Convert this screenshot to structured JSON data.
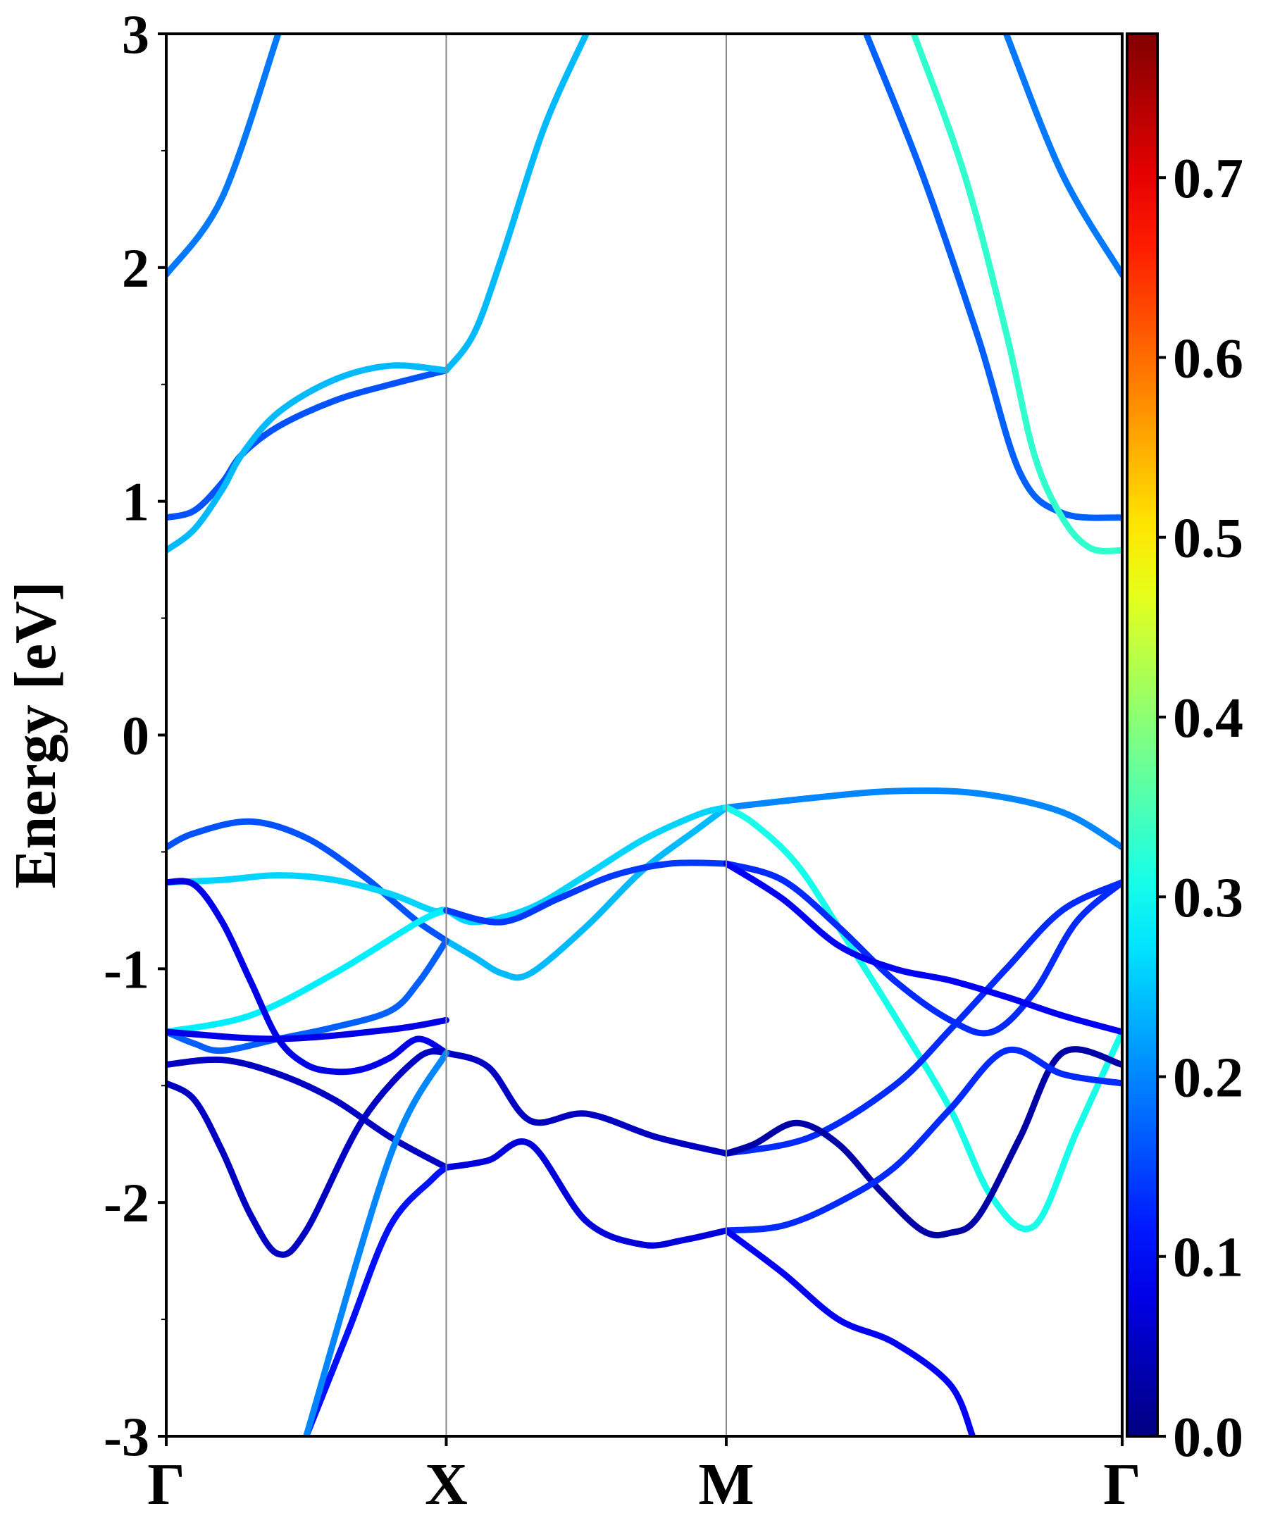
{
  "chart_data": {
    "type": "line",
    "xlabel": "",
    "ylabel": "Energy [eV]",
    "ylim": [
      -3,
      3
    ],
    "yticks": [
      -3,
      -2,
      -1,
      0,
      1,
      2,
      3
    ],
    "ytick_labels": [
      "-3",
      "-2",
      "-1",
      "0",
      "1",
      "2",
      "3"
    ],
    "xticks": [
      {
        "label": "Γ",
        "x": 0
      },
      {
        "label": "X",
        "x": 1
      },
      {
        "label": "M",
        "x": 2
      },
      {
        "label": "Γ",
        "x": 3.414
      }
    ],
    "xlim": [
      0,
      3.414
    ],
    "colorbar": {
      "colormap": "jet",
      "range": [
        0,
        0.78
      ],
      "ticks": [
        0.0,
        0.1,
        0.2,
        0.3,
        0.4,
        0.5,
        0.6,
        0.7
      ],
      "tick_labels": [
        "0.0",
        "0.1",
        "0.2",
        "0.3",
        "0.4",
        "0.5",
        "0.6",
        "0.7"
      ]
    },
    "series": [
      {
        "x": [
          0,
          0.2,
          0.4
        ],
        "y": [
          1.97,
          2.3,
          3.0
        ],
        "c": 0.19
      },
      {
        "x": [
          3.414,
          3.2,
          3.0
        ],
        "y": [
          1.97,
          2.4,
          3.0
        ],
        "c": 0.19
      },
      {
        "x": [
          0,
          0.1,
          0.2,
          0.27,
          0.4,
          0.6,
          0.8,
          1.0
        ],
        "y": [
          0.93,
          0.96,
          1.08,
          1.2,
          1.32,
          1.43,
          1.5,
          1.56
        ],
        "c": 0.16
      },
      {
        "x": [
          0,
          0.1,
          0.2,
          0.27,
          0.4,
          0.6,
          0.8,
          1.0
        ],
        "y": [
          0.79,
          0.88,
          1.05,
          1.2,
          1.38,
          1.52,
          1.58,
          1.56
        ],
        "c": 0.24
      },
      {
        "x": [
          1.0,
          1.1,
          1.2,
          1.35,
          1.5
        ],
        "y": [
          1.56,
          1.72,
          2.05,
          2.6,
          3.0
        ],
        "c": 0.24
      },
      {
        "x": [
          2.5,
          2.7,
          2.9,
          3.05,
          3.2,
          3.414
        ],
        "y": [
          3.0,
          2.4,
          1.7,
          1.12,
          0.95,
          0.93
        ],
        "c": 0.17
      },
      {
        "x": [
          2.67,
          2.85,
          3.0,
          3.1,
          3.2,
          3.3,
          3.414
        ],
        "y": [
          3.0,
          2.4,
          1.72,
          1.2,
          0.93,
          0.8,
          0.79
        ],
        "c": 0.33
      },
      {
        "x": [
          0,
          0.1,
          0.3,
          0.5,
          0.7,
          0.8,
          0.9,
          1.0
        ],
        "y": [
          -0.48,
          -0.42,
          -0.37,
          -0.44,
          -0.6,
          -0.7,
          -0.8,
          -0.88
        ],
        "c": 0.16
      },
      {
        "x": [
          1.0,
          1.1,
          1.2,
          1.3,
          1.5,
          1.7,
          1.9,
          2.0
        ],
        "y": [
          -0.88,
          -0.95,
          -1.02,
          -1.02,
          -0.82,
          -0.58,
          -0.4,
          -0.31
        ],
        "c": 0.24
      },
      {
        "x": [
          2.0,
          2.3,
          2.6,
          2.9,
          3.2,
          3.414
        ],
        "y": [
          -0.31,
          -0.27,
          -0.24,
          -0.25,
          -0.33,
          -0.48
        ],
        "c": 0.2
      },
      {
        "x": [
          0,
          0.2,
          0.4,
          0.6,
          0.8,
          0.95,
          1.0,
          1.1,
          1.3,
          1.5,
          1.7,
          1.9,
          2.0
        ],
        "y": [
          -0.63,
          -0.62,
          -0.6,
          -0.62,
          -0.68,
          -0.75,
          -0.75,
          -0.8,
          -0.74,
          -0.6,
          -0.45,
          -0.34,
          -0.31
        ],
        "c": 0.26
      },
      {
        "x": [
          2.0,
          2.1,
          2.25,
          2.4,
          2.6,
          2.8,
          2.95,
          3.1,
          3.25,
          3.414
        ],
        "y": [
          -0.31,
          -0.38,
          -0.55,
          -0.82,
          -1.2,
          -1.6,
          -1.98,
          -2.1,
          -1.7,
          -1.27
        ],
        "c": 0.31
      },
      {
        "x": [
          0,
          0.3,
          0.6,
          0.9,
          1.0
        ],
        "y": [
          -1.27,
          -1.2,
          -1.02,
          -0.8,
          -0.75
        ],
        "c": 0.28
      },
      {
        "x": [
          0,
          0.1,
          0.2,
          0.4,
          0.6,
          0.8,
          0.9,
          1.0
        ],
        "y": [
          -1.27,
          -1.32,
          -1.35,
          -1.3,
          -1.25,
          -1.18,
          -1.06,
          -0.88
        ],
        "c": 0.17
      },
      {
        "x": [
          1.0,
          1.2,
          1.4,
          1.6,
          1.8,
          2.0
        ],
        "y": [
          -0.75,
          -0.8,
          -0.7,
          -0.6,
          -0.55,
          -0.55
        ],
        "c": 0.14
      },
      {
        "x": [
          2.0,
          2.2,
          2.4,
          2.6,
          2.8,
          2.95,
          3.1,
          3.25,
          3.414
        ],
        "y": [
          -0.55,
          -0.62,
          -0.82,
          -1.05,
          -1.22,
          -1.27,
          -1.1,
          -0.8,
          -0.63
        ],
        "c": 0.13
      },
      {
        "x": [
          0,
          0.1,
          0.2,
          0.3,
          0.4,
          0.5,
          0.6,
          0.7,
          0.8,
          0.9,
          1.0
        ],
        "y": [
          -0.63,
          -0.64,
          -0.8,
          -1.05,
          -1.3,
          -1.41,
          -1.44,
          -1.43,
          -1.38,
          -1.3,
          -1.36
        ],
        "c": 0.08
      },
      {
        "x": [
          0,
          0.4,
          0.8,
          1.0
        ],
        "y": [
          -1.27,
          -1.3,
          -1.26,
          -1.22
        ],
        "c": 0.08
      },
      {
        "x": [
          1.0,
          1.15,
          1.3,
          1.5,
          1.75,
          2.0
        ],
        "y": [
          -1.36,
          -1.42,
          -1.65,
          -1.62,
          -1.72,
          -1.79
        ],
        "c": 0.05
      },
      {
        "x": [
          2.0,
          2.3,
          2.6,
          2.8,
          3.0,
          3.2,
          3.414
        ],
        "y": [
          -1.79,
          -1.72,
          -1.5,
          -1.26,
          -1.0,
          -0.75,
          -0.63
        ],
        "c": 0.13
      },
      {
        "x": [
          0,
          0.2,
          0.4,
          0.6,
          0.8,
          1.0
        ],
        "y": [
          -1.41,
          -1.39,
          -1.45,
          -1.56,
          -1.72,
          -1.85
        ],
        "c": 0.05
      },
      {
        "x": [
          2.0,
          2.2,
          2.4,
          2.6,
          2.8,
          3.0,
          3.2,
          3.414
        ],
        "y": [
          -0.55,
          -0.7,
          -0.9,
          -1.0,
          -1.05,
          -1.12,
          -1.2,
          -1.27
        ],
        "c": 0.09
      },
      {
        "x": [
          2.0,
          2.1,
          2.25,
          2.4,
          2.55,
          2.7,
          2.8,
          2.9,
          3.05,
          3.2,
          3.414
        ],
        "y": [
          -1.79,
          -1.75,
          -1.66,
          -1.75,
          -1.95,
          -2.12,
          -2.13,
          -2.06,
          -1.72,
          -1.36,
          -1.41
        ],
        "c": 0.03
      },
      {
        "x": [
          0,
          0.1,
          0.2,
          0.3,
          0.4,
          0.5,
          0.7,
          0.9,
          1.0
        ],
        "y": [
          -1.49,
          -1.56,
          -1.78,
          -2.05,
          -2.22,
          -2.12,
          -1.65,
          -1.38,
          -1.36
        ],
        "c": 0.05
      },
      {
        "x": [
          1.0,
          1.15,
          1.3,
          1.5,
          1.7,
          1.85,
          2.0
        ],
        "y": [
          -1.85,
          -1.82,
          -1.75,
          -2.08,
          -2.18,
          -2.16,
          -2.12
        ],
        "c": 0.07
      },
      {
        "x": [
          2.0,
          2.2,
          2.4,
          2.6,
          2.8,
          3.0,
          3.2,
          3.414
        ],
        "y": [
          -2.12,
          -2.1,
          -2.0,
          -1.85,
          -1.6,
          -1.35,
          -1.45,
          -1.49
        ],
        "c": 0.13
      },
      {
        "x": [
          0.5,
          0.65,
          0.8,
          0.95,
          1.0
        ],
        "y": [
          -3.0,
          -2.55,
          -2.1,
          -1.9,
          -1.85
        ],
        "c": 0.11
      },
      {
        "x": [
          0.5,
          0.8,
          1.0
        ],
        "y": [
          -3.0,
          -1.8,
          -1.36
        ],
        "c": 0.2
      },
      {
        "x": [
          2.0,
          2.2,
          2.4,
          2.6,
          2.8,
          2.88
        ],
        "y": [
          -2.12,
          -2.3,
          -2.5,
          -2.6,
          -2.78,
          -3.0
        ],
        "c": 0.09
      }
    ]
  }
}
